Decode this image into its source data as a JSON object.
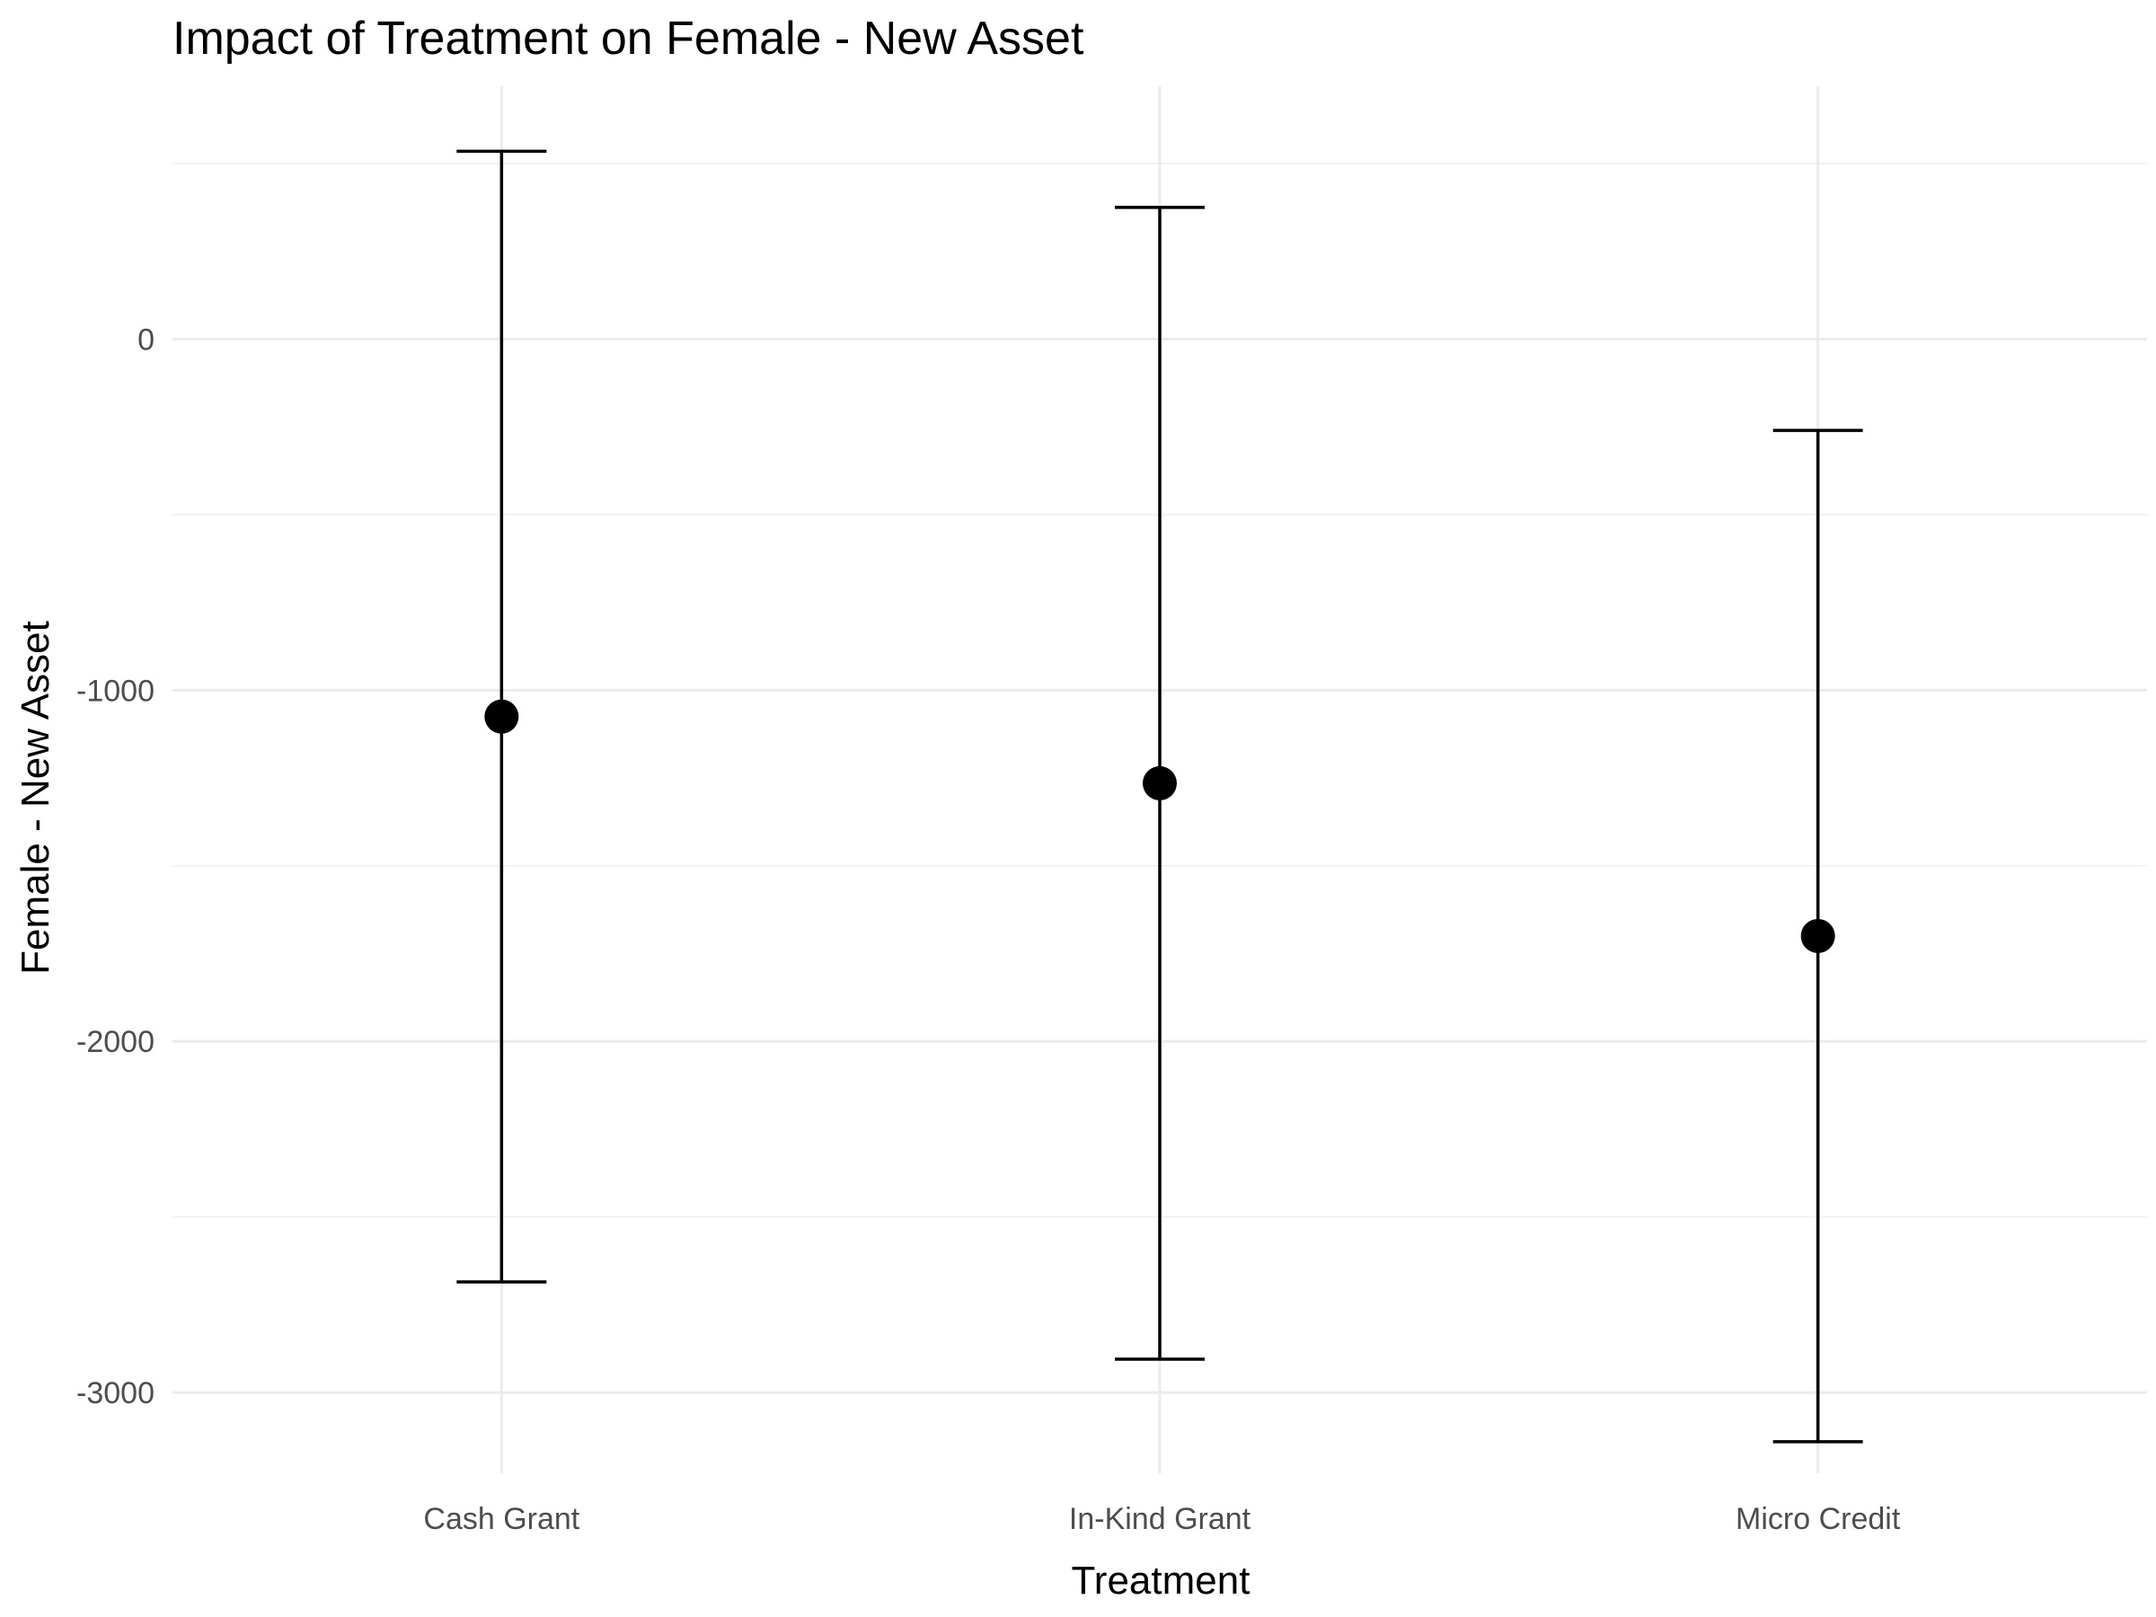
{
  "chart_data": {
    "type": "scatter",
    "title": "Impact of Treatment on Female - New Asset",
    "xlabel": "Treatment",
    "ylabel": "Female - New Asset",
    "categories": [
      "Cash Grant",
      "In-Kind Grant",
      "Micro Credit"
    ],
    "estimates": [
      -1075,
      -1265,
      -1700
    ],
    "ci_lower": [
      -2685,
      -2905,
      -3140
    ],
    "ci_upper": [
      535,
      375,
      -260
    ],
    "ylim": [
      -3230,
      720
    ],
    "y_ticks": [
      0,
      -1000,
      -2000,
      -3000
    ],
    "y_tick_labels": [
      "0",
      "-1000",
      "-2000",
      "-3000"
    ],
    "grid": true,
    "legend": "none",
    "point_color": "#000000",
    "errorbar_color": "#000000"
  }
}
